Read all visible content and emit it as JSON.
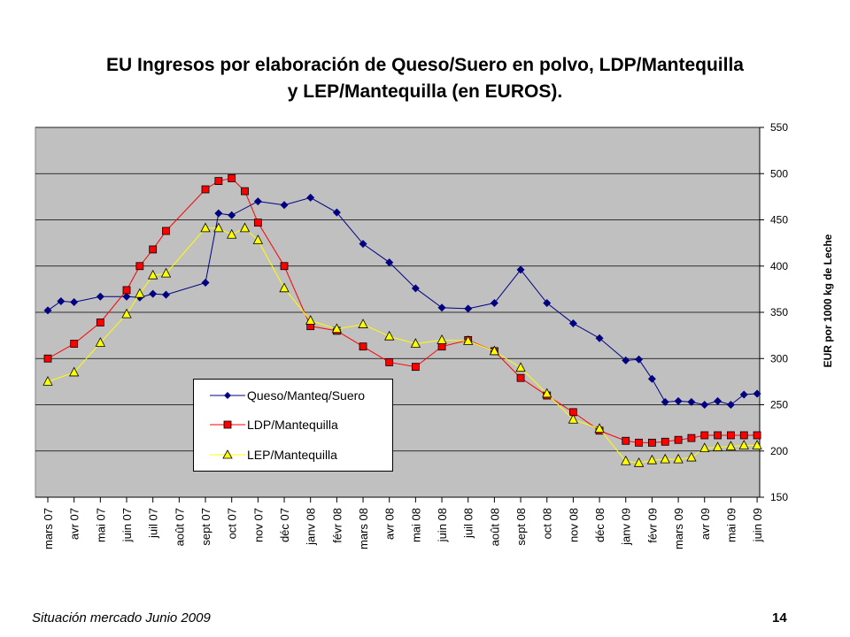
{
  "title": {
    "line1": "EU Ingresos por elaboración de Queso/Suero en polvo, LDP/Mantequilla",
    "line2": "y LEP/Mantequilla (en EUROS)."
  },
  "footer": {
    "source": "Situación mercado Junio 2009",
    "page": "14"
  },
  "chart_data": {
    "type": "line",
    "ylabel": "EUR por 1000 kg de Leche",
    "ylim": [
      150,
      550
    ],
    "yticks": [
      150,
      200,
      250,
      300,
      350,
      400,
      450,
      500,
      550
    ],
    "grid": "horizontal",
    "background": "#c0c0c0",
    "legend_position": "lower-left",
    "categories": [
      "mars 07",
      "avr 07",
      "mai 07",
      "juin 07",
      "juil 07",
      "août 07",
      "sept 07",
      "oct 07",
      "nov 07",
      "déc 07",
      "janv 08",
      "févr 08",
      "mars 08",
      "avr 08",
      "mai 08",
      "juin 08",
      "juil 08",
      "août 08",
      "sept 08",
      "oct 08",
      "nov 08",
      "déc 08",
      "janv 09",
      "févr 09",
      "mars 09",
      "avr 09",
      "mai 09",
      "juin 09"
    ],
    "series": [
      {
        "name": "Queso/Manteq/Suero",
        "color": "#000080",
        "marker": "diamond",
        "x": [
          0,
          0.5,
          1,
          2,
          3,
          3.5,
          4,
          4.5,
          6,
          6.5,
          7,
          8,
          9,
          10,
          11,
          12,
          13,
          14,
          15,
          16,
          17,
          18,
          19,
          20,
          21,
          22,
          22.5,
          23,
          23.5,
          24,
          24.5,
          25,
          25.5,
          26,
          26.5,
          27
        ],
        "y": [
          352,
          362,
          361,
          367,
          367,
          366,
          370,
          369,
          382,
          457,
          455,
          470,
          466,
          474,
          458,
          424,
          404,
          376,
          355,
          354,
          360,
          396,
          360,
          338,
          322,
          298,
          299,
          278,
          253,
          254,
          253,
          250,
          254,
          250,
          261,
          262
        ]
      },
      {
        "name": "LDP/Mantequilla",
        "color": "#ff0000",
        "marker": "square",
        "x": [
          0,
          1,
          2,
          3,
          3.5,
          4,
          4.5,
          6,
          6.5,
          7,
          7.5,
          8,
          9,
          10,
          11,
          12,
          13,
          14,
          15,
          16,
          17,
          18,
          19,
          20,
          21,
          22,
          22.5,
          23,
          23.5,
          24,
          24.5,
          25,
          25.5,
          26,
          26.5,
          27
        ],
        "y": [
          300,
          316,
          339,
          374,
          400,
          418,
          438,
          483,
          492,
          495,
          481,
          447,
          400,
          335,
          330,
          313,
          296,
          291,
          313,
          320,
          308,
          279,
          260,
          242,
          222,
          211,
          209,
          209,
          210,
          212,
          214,
          217,
          217,
          217,
          217,
          217
        ]
      },
      {
        "name": "LEP/Mantequilla",
        "color": "#ffff00",
        "marker": "triangle",
        "x": [
          0,
          1,
          2,
          3,
          3.5,
          4,
          4.5,
          6,
          6.5,
          7,
          7.5,
          8,
          9,
          10,
          11,
          12,
          13,
          14,
          15,
          16,
          17,
          18,
          19,
          20,
          21,
          22,
          22.5,
          23,
          23.5,
          24,
          24.5,
          25,
          25.5,
          26,
          26.5,
          27
        ],
        "y": [
          275,
          285,
          317,
          348,
          370,
          390,
          392,
          441,
          441,
          434,
          441,
          428,
          376,
          341,
          332,
          337,
          324,
          316,
          320,
          319,
          308,
          290,
          262,
          234,
          224,
          189,
          187,
          190,
          191,
          191,
          193,
          203,
          204,
          205,
          206,
          206
        ]
      }
    ]
  }
}
